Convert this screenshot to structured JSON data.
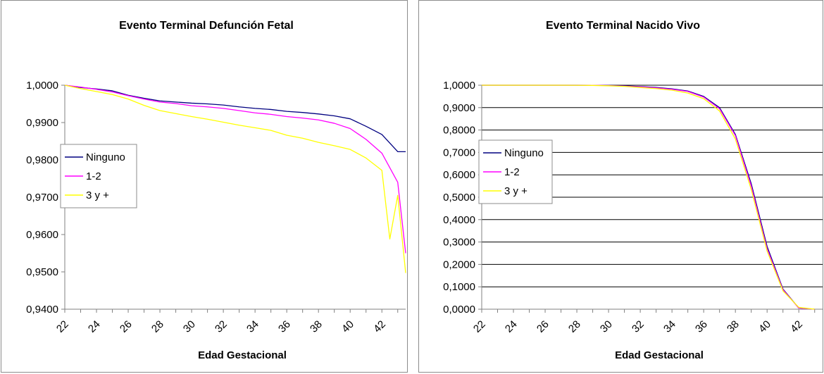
{
  "chart_data": [
    {
      "type": "line",
      "title": "Evento Terminal Defunción Fetal",
      "xlabel": "Edad Gestacional",
      "ylabel": "",
      "ylim": [
        0.94,
        1.0
      ],
      "y_tick_labels": [
        "1,0000",
        "0,9900",
        "0,9800",
        "0,9700",
        "0,9600",
        "0,9500",
        "0,9400"
      ],
      "x_tick_labels": [
        "22",
        "24",
        "26",
        "28",
        "30",
        "32",
        "34",
        "36",
        "38",
        "40",
        "42"
      ],
      "x": [
        22,
        23,
        24,
        25,
        26,
        27,
        28,
        29,
        30,
        31,
        32,
        33,
        34,
        35,
        36,
        37,
        38,
        39,
        40,
        41,
        42,
        43
      ],
      "grid": "none",
      "legend": "left",
      "series": [
        {
          "name": "Ninguno",
          "color": "#000080",
          "values": [
            1.0,
            0.9994,
            0.999,
            0.9985,
            0.9973,
            0.9965,
            0.9958,
            0.9955,
            0.9952,
            0.995,
            0.9947,
            0.9942,
            0.9938,
            0.9935,
            0.993,
            0.9927,
            0.9923,
            0.9918,
            0.991,
            0.989,
            0.9868,
            0.9822
          ]
        },
        {
          "name": "1-2",
          "color": "#ff00ff",
          "values": [
            1.0,
            0.9995,
            0.9989,
            0.9982,
            0.9972,
            0.9963,
            0.9955,
            0.9951,
            0.9945,
            0.9942,
            0.9938,
            0.9932,
            0.9926,
            0.9922,
            0.9916,
            0.9912,
            0.9907,
            0.9898,
            0.9884,
            0.9855,
            0.9818,
            0.974
          ]
        },
        {
          "name": "3 y +",
          "color": "#ffff00",
          "values": [
            1.0,
            0.9991,
            0.9983,
            0.9975,
            0.9963,
            0.9946,
            0.9932,
            0.9924,
            0.9916,
            0.9909,
            0.9901,
            0.9893,
            0.9886,
            0.9879,
            0.9866,
            0.9858,
            0.9847,
            0.9838,
            0.9828,
            0.9805,
            0.9772,
            0.9705
          ]
        }
      ],
      "tail": [
        {
          "series": "Ninguno",
          "x": [
            43.5
          ],
          "values": [
            0.9822
          ]
        },
        {
          "series": "1-2",
          "x": [
            43.5
          ],
          "values": [
            0.955
          ]
        },
        {
          "series": "3 y +",
          "x": [
            42.5,
            43.5
          ],
          "values": [
            0.9588,
            0.9497
          ]
        }
      ]
    },
    {
      "type": "line",
      "title": "Evento Terminal Nacido Vivo",
      "xlabel": "Edad Gestacional",
      "ylabel": "",
      "ylim": [
        0.0,
        1.0
      ],
      "y_tick_labels": [
        "1,0000",
        "0,9000",
        "0,8000",
        "0,7000",
        "0,6000",
        "0,5000",
        "0,4000",
        "0,3000",
        "0,2000",
        "0,1000",
        "0,0000"
      ],
      "x_tick_labels": [
        "22",
        "24",
        "26",
        "28",
        "30",
        "32",
        "34",
        "36",
        "38",
        "40",
        "42"
      ],
      "x": [
        22,
        23,
        24,
        25,
        26,
        27,
        28,
        29,
        30,
        31,
        32,
        33,
        34,
        35,
        36,
        37,
        38,
        39,
        40,
        41,
        42,
        43
      ],
      "grid": "horizontal",
      "legend": "left",
      "series": [
        {
          "name": "Ninguno",
          "color": "#000080",
          "values": [
            1.0,
            1.0,
            1.0,
            1.0,
            1.0,
            1.0,
            1.0,
            0.9995,
            0.999,
            0.997,
            0.994,
            0.99,
            0.984,
            0.974,
            0.95,
            0.9,
            0.78,
            0.56,
            0.28,
            0.09,
            0.005,
            0.0
          ]
        },
        {
          "name": "1-2",
          "color": "#ff00ff",
          "values": [
            1.0,
            1.0,
            1.0,
            1.0,
            1.0,
            1.0,
            1.0,
            0.9995,
            0.9985,
            0.996,
            0.993,
            0.988,
            0.982,
            0.972,
            0.947,
            0.895,
            0.775,
            0.55,
            0.27,
            0.087,
            0.005,
            0.0
          ]
        },
        {
          "name": "3 y +",
          "color": "#ffff00",
          "values": [
            1.0,
            1.0,
            1.0,
            1.0,
            1.0,
            1.0,
            0.9995,
            0.999,
            0.9975,
            0.995,
            0.99,
            0.985,
            0.978,
            0.965,
            0.94,
            0.885,
            0.76,
            0.535,
            0.26,
            0.082,
            0.008,
            0.0
          ]
        }
      ]
    }
  ]
}
